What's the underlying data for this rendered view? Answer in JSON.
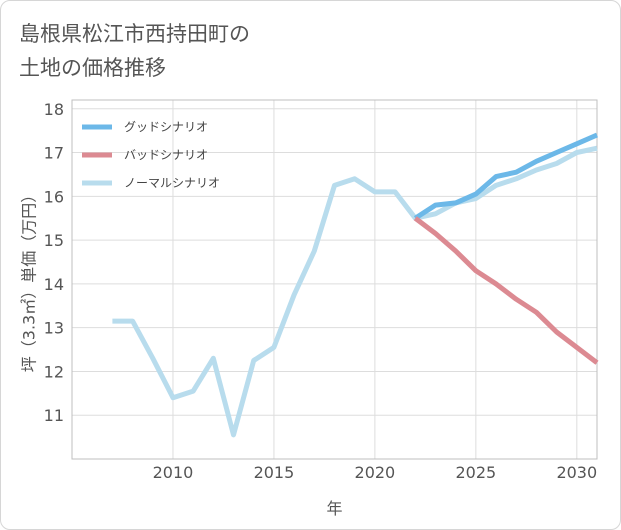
{
  "title_lines": [
    "島根県松江市西持田町の",
    "土地の価格推移"
  ],
  "chart_data": {
    "type": "line",
    "title": "島根県松江市西持田町の土地の価格推移",
    "xlabel": "年",
    "ylabel": "坪（3.3㎡）単価（万円）",
    "xlim": [
      2005,
      2031
    ],
    "ylim": [
      10,
      18.2
    ],
    "xticks": [
      2010,
      2015,
      2020,
      2025,
      2030
    ],
    "yticks": [
      11,
      12,
      13,
      14,
      15,
      16,
      17,
      18
    ],
    "legend_position": "top-left",
    "series": [
      {
        "name": "グッドシナリオ",
        "color": "#6cb8e8",
        "x": [
          2022,
          2023,
          2024,
          2025,
          2026,
          2027,
          2028,
          2029,
          2030,
          2031
        ],
        "values": [
          15.5,
          15.8,
          15.85,
          16.05,
          16.45,
          16.55,
          16.8,
          17.0,
          17.2,
          17.4
        ]
      },
      {
        "name": "バッドシナリオ",
        "color": "#dc8a92",
        "x": [
          2022,
          2023,
          2024,
          2025,
          2026,
          2027,
          2028,
          2029,
          2030,
          2031
        ],
        "values": [
          15.5,
          15.15,
          14.75,
          14.3,
          14.0,
          13.65,
          13.35,
          12.9,
          12.55,
          12.2
        ]
      },
      {
        "name": "ノーマルシナリオ",
        "color": "#b8dced",
        "x": [
          2007,
          2008,
          2009,
          2010,
          2011,
          2012,
          2013,
          2014,
          2015,
          2016,
          2017,
          2018,
          2019,
          2020,
          2021,
          2022,
          2023,
          2024,
          2025,
          2026,
          2027,
          2028,
          2029,
          2030,
          2031
        ],
        "values": [
          13.15,
          13.15,
          12.3,
          11.4,
          11.55,
          12.3,
          10.55,
          12.25,
          12.55,
          13.75,
          14.75,
          16.25,
          16.4,
          16.1,
          16.1,
          15.5,
          15.6,
          15.85,
          15.95,
          16.25,
          16.4,
          16.6,
          16.75,
          17.0,
          17.1
        ]
      }
    ]
  }
}
